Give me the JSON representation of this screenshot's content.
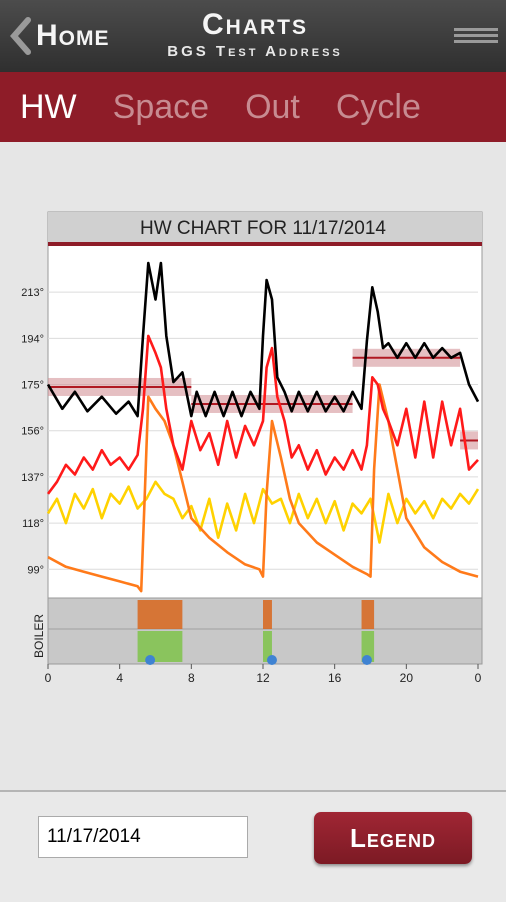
{
  "header": {
    "back_label": "Home",
    "title": "Charts",
    "subtitle": "BGS Test Address"
  },
  "tabs": [
    {
      "label": "HW",
      "active": true
    },
    {
      "label": "Space",
      "active": false
    },
    {
      "label": "Out",
      "active": false
    },
    {
      "label": "Cycle",
      "active": false
    }
  ],
  "footer": {
    "date_value": "11/17/2014",
    "legend_label": "Legend"
  },
  "colors": {
    "accent": "#8e1c28",
    "header": "#3a3a3a",
    "black_series": "#000000",
    "red_series": "#ff1a1a",
    "yellow_series": "#ffd200",
    "orange_series": "#ff7a1a",
    "setpoint_band": "#d08a90"
  },
  "chart_data": {
    "type": "line",
    "title": "HW CHART FOR 11/17/2014",
    "xlabel": "",
    "ylabel": "",
    "x_ticks": [
      "0",
      "4",
      "8",
      "12",
      "16",
      "20",
      "0"
    ],
    "y_ticks": [
      "213°",
      "194°",
      "175°",
      "156°",
      "137°",
      "118°",
      "99°"
    ],
    "xlim": [
      0,
      24
    ],
    "ylim": [
      88,
      232
    ],
    "grid": true,
    "series": [
      {
        "color": "#000000",
        "x": [
          0,
          0.8,
          1.5,
          2.2,
          3,
          3.8,
          4.5,
          5.0,
          5.3,
          5.6,
          6,
          6.3,
          6.6,
          7,
          7.5,
          8,
          8.3,
          8.8,
          9.3,
          9.8,
          10.3,
          10.8,
          11.3,
          11.8,
          12.0,
          12.2,
          12.5,
          12.8,
          13.2,
          13.6,
          14,
          14.5,
          15,
          15.5,
          16,
          16.5,
          17,
          17.5,
          17.8,
          18.1,
          18.4,
          18.7,
          19,
          19.5,
          20,
          20.5,
          21,
          21.5,
          22,
          22.5,
          23,
          23.5,
          24
        ],
        "values": [
          175,
          165,
          172,
          164,
          170,
          163,
          168,
          162,
          195,
          225,
          210,
          225,
          195,
          176,
          180,
          162,
          172,
          162,
          172,
          162,
          172,
          162,
          172,
          165,
          195,
          218,
          210,
          178,
          172,
          164,
          172,
          164,
          172,
          164,
          170,
          164,
          172,
          165,
          193,
          215,
          205,
          190,
          192,
          186,
          192,
          186,
          192,
          186,
          190,
          186,
          188,
          175,
          168
        ]
      },
      {
        "color": "#ff1a1a",
        "x": [
          0,
          0.5,
          1,
          1.5,
          2,
          2.5,
          3,
          3.5,
          4,
          4.5,
          5,
          5.3,
          5.6,
          6,
          6.3,
          6.6,
          7,
          7.5,
          8,
          8.5,
          9,
          9.5,
          10,
          10.5,
          11,
          11.5,
          12,
          12.2,
          12.5,
          12.8,
          13.2,
          13.6,
          14,
          14.5,
          15,
          15.5,
          16,
          16.5,
          17,
          17.5,
          17.8,
          18.1,
          18.4,
          18.7,
          19,
          19.5,
          20,
          20.5,
          21,
          21.5,
          22,
          22.5,
          23,
          23.5,
          24
        ],
        "values": [
          130,
          135,
          142,
          138,
          145,
          140,
          148,
          142,
          145,
          140,
          146,
          165,
          195,
          188,
          182,
          165,
          150,
          140,
          160,
          148,
          155,
          142,
          160,
          145,
          158,
          150,
          160,
          182,
          190,
          170,
          160,
          145,
          150,
          140,
          148,
          138,
          145,
          140,
          148,
          140,
          150,
          178,
          175,
          165,
          160,
          150,
          165,
          145,
          168,
          145,
          168,
          150,
          165,
          140,
          144
        ]
      },
      {
        "color": "#ffd200",
        "x": [
          0,
          0.5,
          1,
          1.5,
          2,
          2.5,
          3,
          3.5,
          4,
          4.5,
          5,
          5.5,
          6,
          6.5,
          7,
          7.5,
          8,
          8.5,
          9,
          9.5,
          10,
          10.5,
          11,
          11.5,
          12,
          12.5,
          13,
          13.5,
          14,
          14.5,
          15,
          15.5,
          16,
          16.5,
          17,
          17.5,
          18,
          18.5,
          19,
          19.5,
          20,
          20.5,
          21,
          21.5,
          22,
          22.5,
          23,
          23.5,
          24
        ],
        "values": [
          122,
          128,
          118,
          130,
          124,
          132,
          120,
          130,
          126,
          133,
          124,
          128,
          135,
          130,
          128,
          120,
          125,
          115,
          128,
          112,
          126,
          115,
          130,
          118,
          132,
          126,
          128,
          118,
          130,
          120,
          128,
          118,
          127,
          115,
          126,
          122,
          128,
          110,
          130,
          118,
          128,
          122,
          127,
          120,
          128,
          124,
          130,
          126,
          132
        ]
      },
      {
        "color": "#ff7a1a",
        "x": [
          0,
          1,
          2,
          3,
          4,
          5,
          5.2,
          5.4,
          5.6,
          6,
          6.5,
          7,
          7.5,
          8,
          9,
          10,
          11,
          11.8,
          12,
          12.2,
          12.5,
          13,
          13.5,
          14,
          15,
          16,
          17,
          17.8,
          18,
          18.2,
          18.5,
          19,
          19.5,
          20,
          21,
          22,
          23,
          24
        ],
        "values": [
          104,
          100,
          98,
          96,
          94,
          92,
          90,
          130,
          170,
          165,
          160,
          150,
          135,
          120,
          112,
          106,
          101,
          99,
          96,
          130,
          160,
          145,
          128,
          118,
          110,
          105,
          100,
          97,
          96,
          140,
          175,
          160,
          140,
          120,
          108,
          102,
          98,
          96
        ]
      }
    ],
    "setpoints": [
      {
        "x_start": 0,
        "x_end": 8,
        "value": 174
      },
      {
        "x_start": 8,
        "x_end": 17,
        "value": 167
      },
      {
        "x_start": 17,
        "x_end": 23,
        "value": 186
      },
      {
        "x_start": 23,
        "x_end": 24,
        "value": 152
      }
    ],
    "boiler": {
      "label": "BOILER",
      "active_ranges": [
        [
          5,
          7.5
        ],
        [
          12,
          12.5
        ],
        [
          17.5,
          18.2
        ]
      ],
      "markers": [
        5.7,
        12.5,
        17.8
      ]
    }
  }
}
